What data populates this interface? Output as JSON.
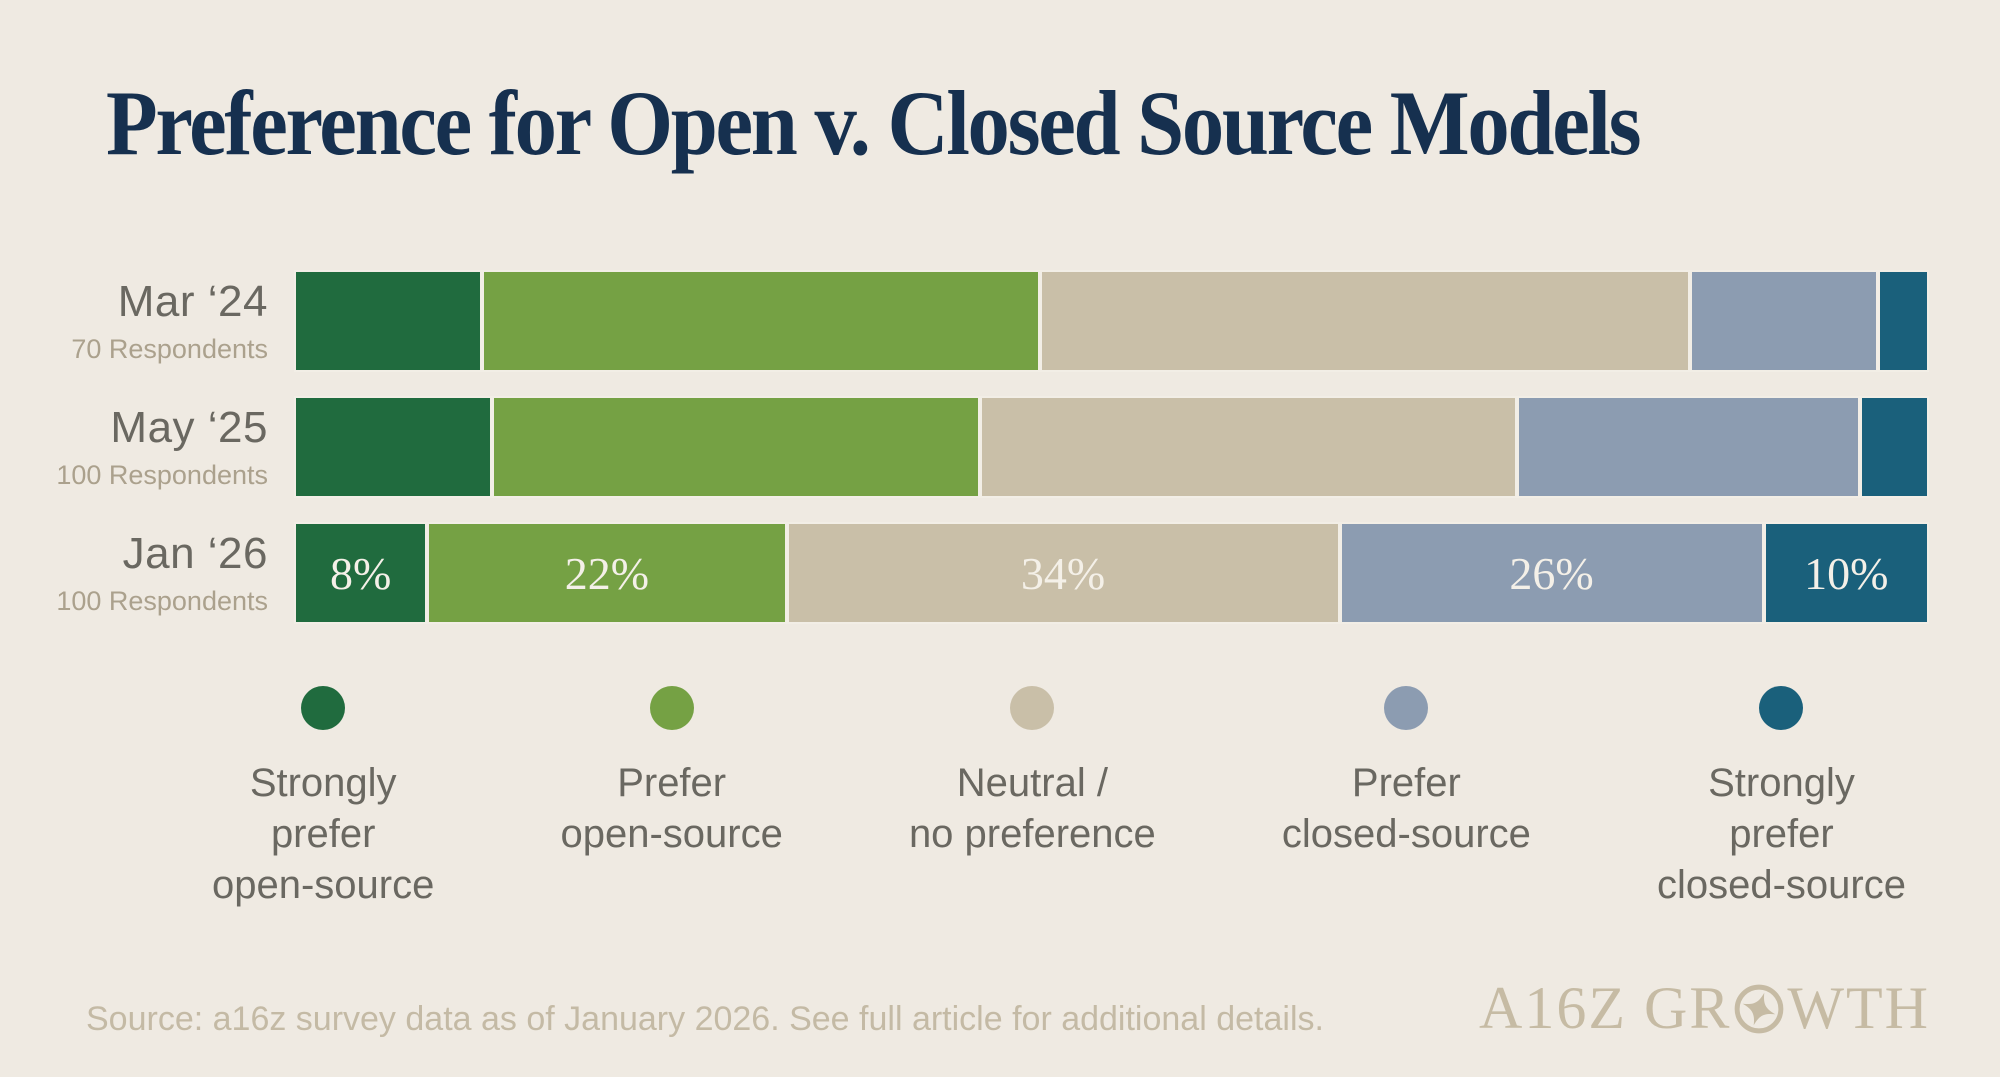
{
  "title": "Preference for Open v. Closed Source Models",
  "chart_data": {
    "type": "bar",
    "variant": "horizontal-stacked-percent",
    "unit": "%",
    "xlim": [
      0,
      100
    ],
    "legend_position": "bottom",
    "categories": [
      "Strongly prefer open-source",
      "Prefer open-source",
      "Neutral / no preference",
      "Prefer closed-source",
      "Strongly prefer closed-source"
    ],
    "series_colors": [
      "#206B3E",
      "#75A144",
      "#C9BFA8",
      "#8C9CB1",
      "#1A607B"
    ],
    "rows": [
      {
        "label": "Mar ‘24",
        "respondents": "70 Respondents",
        "values": [
          11.4,
          34.3,
          40.0,
          11.4,
          2.9
        ],
        "value_labels": null
      },
      {
        "label": "May ‘25",
        "respondents": "100 Respondents",
        "values": [
          12,
          30,
          33,
          21,
          4
        ],
        "value_labels": null
      },
      {
        "label": "Jan ‘26",
        "respondents": "100 Respondents",
        "values": [
          8,
          22,
          34,
          26,
          10
        ],
        "value_labels": [
          "8%",
          "22%",
          "34%",
          "26%",
          "10%"
        ]
      }
    ]
  },
  "legend": {
    "items": [
      {
        "lines": [
          "Strongly",
          "prefer",
          "open-source"
        ],
        "color": "#206B3E"
      },
      {
        "lines": [
          "Prefer",
          "open-source"
        ],
        "color": "#75A144"
      },
      {
        "lines": [
          "Neutral /",
          "no preference"
        ],
        "color": "#C9BFA8"
      },
      {
        "lines": [
          "Prefer",
          "closed-source"
        ],
        "color": "#8C9CB1"
      },
      {
        "lines": [
          "Strongly",
          "prefer",
          "closed-source"
        ],
        "color": "#1A607B"
      }
    ]
  },
  "footer": {
    "source": "Source: a16z survey data as of January 2026. See full article for additional details.",
    "logo": {
      "left": "A16Z GR",
      "right": "WTH",
      "full": "A16Z GROWTH"
    }
  },
  "colors": {
    "background": "#EFEAE2",
    "title": "#16304F",
    "row_label": "#6A6861",
    "respondents": "#ABA18D",
    "legend_label": "#6A6861",
    "bar_value_label": "#F4F0E8",
    "segment_border": "#F2EEE6",
    "footer_text": "#C4BAA5",
    "logo": "#C6BBA4"
  }
}
